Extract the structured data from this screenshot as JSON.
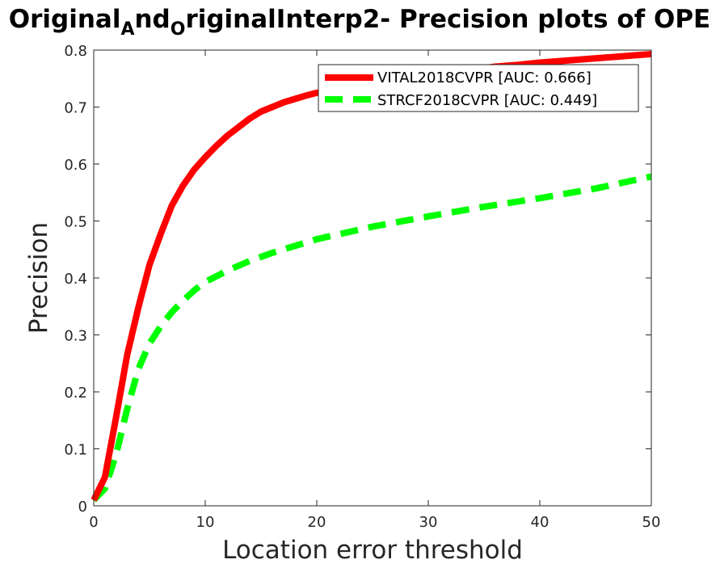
{
  "chart_data": {
    "type": "line",
    "title": {
      "parts": [
        {
          "text": "Original",
          "sub": false
        },
        {
          "text": "A",
          "sub": true
        },
        {
          "text": "nd",
          "sub": false
        },
        {
          "text": "O",
          "sub": true
        },
        {
          "text": "riginalInterp2- Precision plots of OPE",
          "sub": false
        }
      ]
    },
    "xlabel": "Location error threshold",
    "ylabel": "Precision",
    "xlim": [
      0,
      50
    ],
    "ylim": [
      0,
      0.8
    ],
    "xticks": [
      0,
      10,
      20,
      30,
      40,
      50
    ],
    "yticks": [
      0,
      0.1,
      0.2,
      0.3,
      0.4,
      0.5,
      0.6,
      0.7,
      0.8
    ],
    "xtick_labels": [
      "0",
      "10",
      "20",
      "30",
      "40",
      "50"
    ],
    "ytick_labels": [
      "0",
      "0.1",
      "0.2",
      "0.3",
      "0.4",
      "0.5",
      "0.6",
      "0.7",
      "0.8"
    ],
    "grid": false,
    "legend_position": "top-right",
    "series": [
      {
        "name": "VITAL2018CVPR [AUC: 0.666]",
        "color": "#ff0000",
        "style": "solid",
        "x": [
          0,
          1,
          2,
          3,
          4,
          5,
          6,
          7,
          8,
          9,
          10,
          11,
          12,
          13,
          14,
          15,
          16,
          17,
          18,
          19,
          20,
          22,
          24,
          26,
          28,
          30,
          32,
          34,
          36,
          38,
          40,
          42,
          44,
          46,
          48,
          50
        ],
        "values": [
          0.01,
          0.05,
          0.155,
          0.265,
          0.348,
          0.423,
          0.477,
          0.527,
          0.562,
          0.59,
          0.612,
          0.632,
          0.65,
          0.665,
          0.68,
          0.692,
          0.7,
          0.708,
          0.714,
          0.72,
          0.725,
          0.733,
          0.74,
          0.746,
          0.752,
          0.757,
          0.762,
          0.766,
          0.771,
          0.774,
          0.778,
          0.781,
          0.784,
          0.787,
          0.79,
          0.793
        ]
      },
      {
        "name": "STRCF2018CVPR [AUC: 0.449]",
        "color": "#00ff00",
        "style": "dashed",
        "x": [
          0,
          1,
          2,
          3,
          4,
          5,
          6,
          7,
          8,
          9,
          10,
          12,
          14,
          16,
          18,
          20,
          25,
          30,
          35,
          40,
          45,
          50
        ],
        "values": [
          0.01,
          0.03,
          0.09,
          0.17,
          0.24,
          0.285,
          0.315,
          0.34,
          0.36,
          0.378,
          0.393,
          0.413,
          0.43,
          0.444,
          0.456,
          0.468,
          0.49,
          0.508,
          0.525,
          0.54,
          0.557,
          0.578
        ]
      }
    ]
  }
}
